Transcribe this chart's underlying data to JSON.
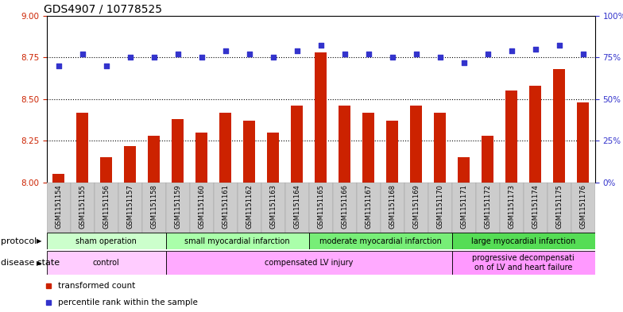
{
  "title": "GDS4907 / 10778525",
  "samples": [
    "GSM1151154",
    "GSM1151155",
    "GSM1151156",
    "GSM1151157",
    "GSM1151158",
    "GSM1151159",
    "GSM1151160",
    "GSM1151161",
    "GSM1151162",
    "GSM1151163",
    "GSM1151164",
    "GSM1151165",
    "GSM1151166",
    "GSM1151167",
    "GSM1151168",
    "GSM1151169",
    "GSM1151170",
    "GSM1151171",
    "GSM1151172",
    "GSM1151173",
    "GSM1151174",
    "GSM1151175",
    "GSM1151176"
  ],
  "bar_values": [
    8.05,
    8.42,
    8.15,
    8.22,
    8.28,
    8.38,
    8.3,
    8.42,
    8.37,
    8.3,
    8.46,
    8.78,
    8.46,
    8.42,
    8.37,
    8.46,
    8.42,
    8.15,
    8.28,
    8.55,
    8.58,
    8.68,
    8.48
  ],
  "dot_values": [
    70,
    77,
    70,
    75,
    75,
    77,
    75,
    79,
    77,
    75,
    79,
    82,
    77,
    77,
    75,
    77,
    75,
    72,
    77,
    79,
    80,
    82,
    77
  ],
  "bar_color": "#cc2200",
  "dot_color": "#3333cc",
  "ylim_left": [
    8.0,
    9.0
  ],
  "ylim_right": [
    0,
    100
  ],
  "yticks_left": [
    8.0,
    8.25,
    8.5,
    8.75,
    9.0
  ],
  "yticks_right": [
    0,
    25,
    50,
    75,
    100
  ],
  "ytick_labels_right": [
    "0%",
    "25%",
    "50%",
    "75%",
    "100%"
  ],
  "dotted_lines": [
    8.25,
    8.5,
    8.75
  ],
  "protocol_groups": [
    {
      "label": "sham operation",
      "start": 0,
      "end": 5,
      "color": "#ccffcc"
    },
    {
      "label": "small myocardial infarction",
      "start": 5,
      "end": 11,
      "color": "#aaffaa"
    },
    {
      "label": "moderate myocardial infarction",
      "start": 11,
      "end": 17,
      "color": "#77ee77"
    },
    {
      "label": "large myocardial infarction",
      "start": 17,
      "end": 23,
      "color": "#55dd55"
    }
  ],
  "disease_groups": [
    {
      "label": "control",
      "start": 0,
      "end": 5,
      "color": "#ffccff"
    },
    {
      "label": "compensated LV injury",
      "start": 5,
      "end": 17,
      "color": "#ffaaff"
    },
    {
      "label": "progressive decompensati\non of LV and heart failure",
      "start": 17,
      "end": 23,
      "color": "#ff99ff"
    }
  ],
  "legend_items": [
    {
      "label": "transformed count",
      "color": "#cc2200"
    },
    {
      "label": "percentile rank within the sample",
      "color": "#3333cc"
    }
  ],
  "bar_width": 0.5,
  "xtick_fontsize": 6.0,
  "title_fontsize": 10,
  "row_label_fontsize": 8,
  "group_label_fontsize": 7,
  "legend_fontsize": 7.5,
  "ytick_fontsize": 7.5,
  "xtick_bg_color": "#cccccc"
}
